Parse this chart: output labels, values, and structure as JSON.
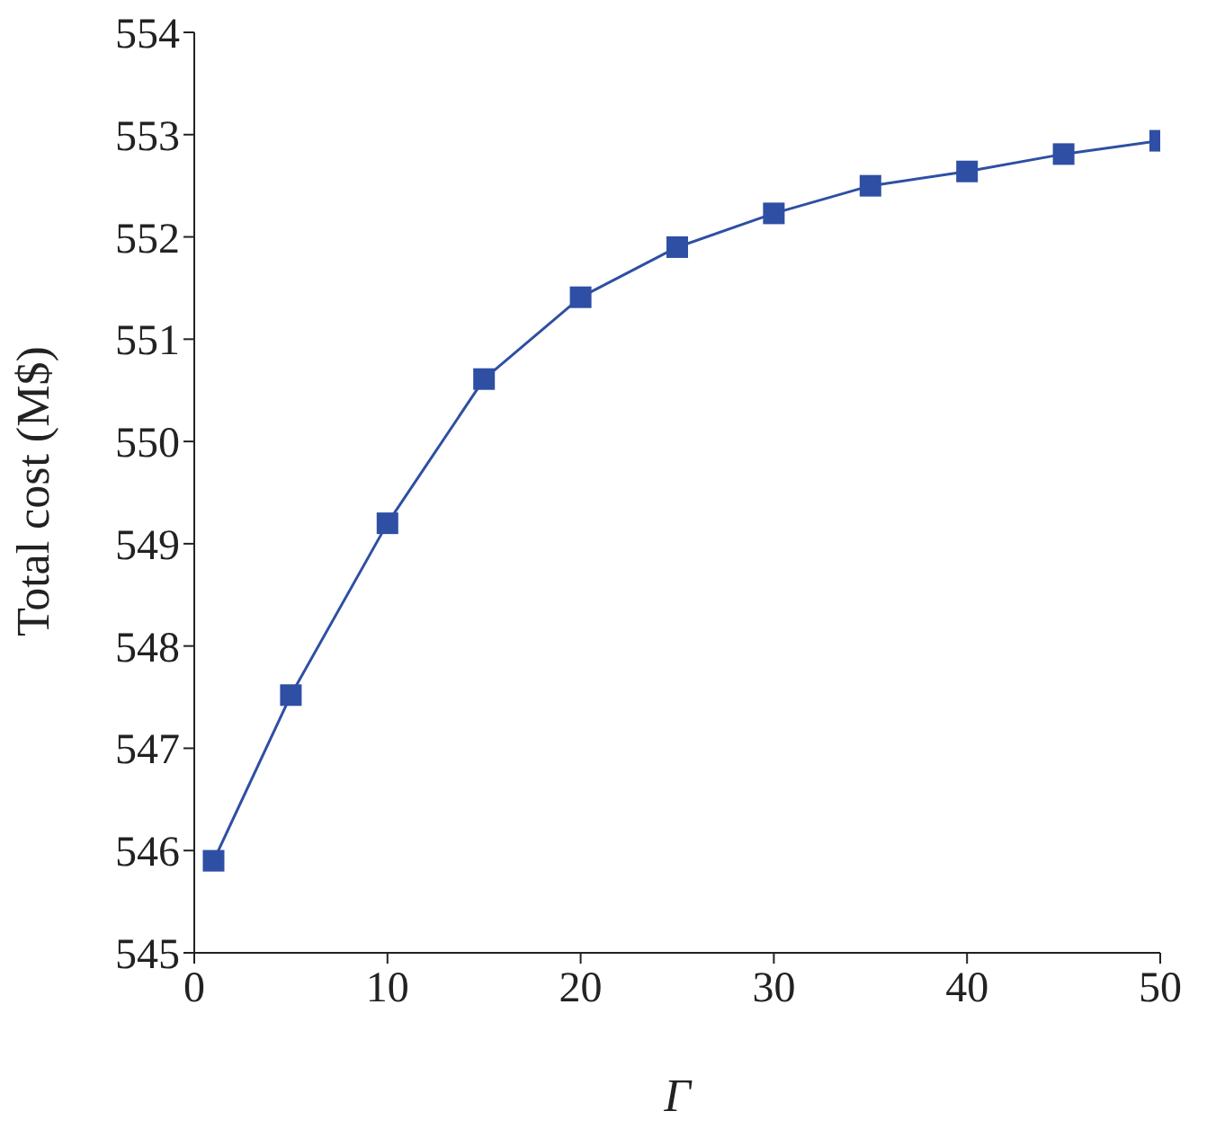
{
  "chart_data": {
    "type": "line",
    "xlabel": "Γ",
    "ylabel": "Total cost (M$)",
    "x": [
      1,
      5,
      10,
      15,
      20,
      25,
      30,
      35,
      40,
      45,
      50
    ],
    "series": [
      {
        "color": "#2e4fa3",
        "values": [
          545.9,
          547.52,
          549.2,
          550.61,
          551.41,
          551.9,
          552.23,
          552.5,
          552.64,
          552.81,
          552.94
        ]
      }
    ],
    "xlim": [
      0,
      50
    ],
    "xticks": [
      0,
      10,
      20,
      30,
      40,
      50
    ],
    "ylim": [
      545,
      554
    ],
    "yticks": [
      545,
      546,
      547,
      548,
      549,
      550,
      551,
      552,
      553,
      554
    ],
    "marker": "square",
    "line_style": "solid",
    "grid": false,
    "legend": false
  }
}
